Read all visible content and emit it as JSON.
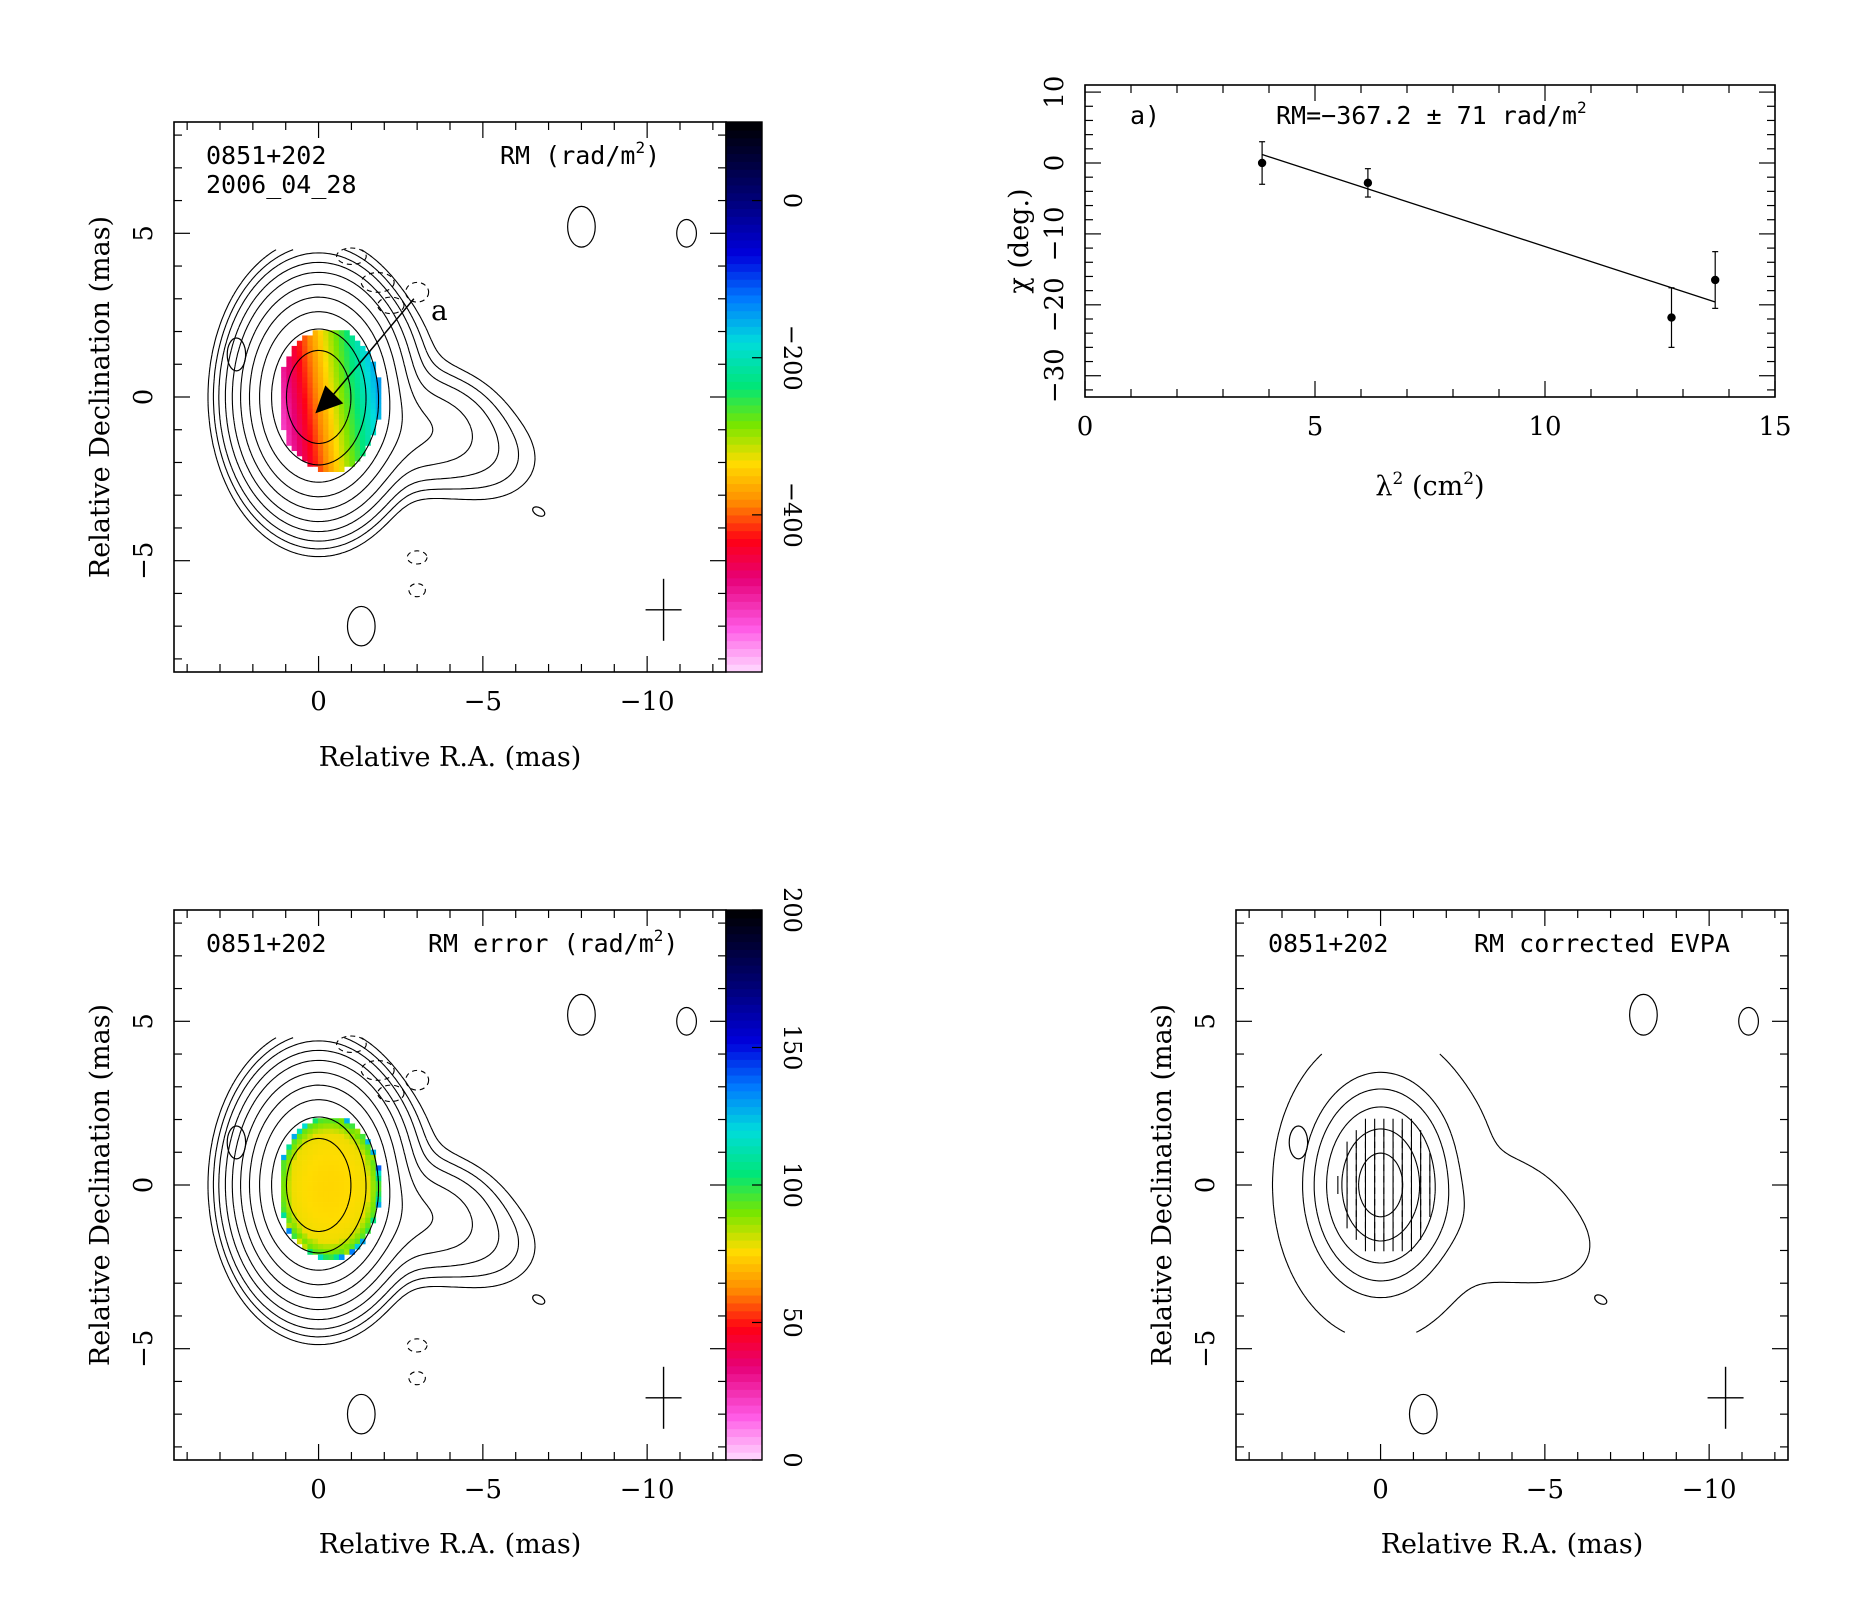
{
  "chart_data": [
    {
      "type": "heatmap",
      "source": "0851+202",
      "epoch": "2006_04_28",
      "quantity_label": "RM (rad/m",
      "quantity_unit_suffix": ")",
      "xlabel": "Relative R.A. (mas)",
      "ylabel": "Relative Declination (mas)",
      "xlim": [
        4.4,
        -12.4
      ],
      "ylim": [
        -8.4,
        8.4
      ],
      "xticks": [
        0,
        -5,
        -10
      ],
      "xtick_labels": [
        "0",
        "−5",
        "−10"
      ],
      "yticks": [
        -5,
        0,
        5
      ],
      "ytick_labels": [
        "−5",
        "0",
        "5"
      ],
      "colorbar": {
        "range": [
          -600,
          100
        ],
        "ticks": [
          0,
          -200,
          -400
        ],
        "tick_labels": [
          "0",
          "−200",
          "−400"
        ]
      },
      "annotation": "a",
      "arrow": {
        "tip": [
          0.1,
          -0.5
        ],
        "tail": [
          -2.9,
          3.0
        ]
      }
    },
    {
      "type": "scatter",
      "panel_label": "a)",
      "annotation": "RM=−367.2 ± 71 rad/m",
      "xlabel": "λ",
      "xlabel_unit": "(cm",
      "ylabel": "χ (deg.)",
      "xlim": [
        0,
        15
      ],
      "ylim": [
        -33,
        11
      ],
      "xticks": [
        0,
        5,
        10,
        15
      ],
      "xtick_labels": [
        "0",
        "5",
        "10",
        "15"
      ],
      "yticks": [
        -30,
        -20,
        -10,
        0,
        10
      ],
      "ytick_labels": [
        "−30",
        "−20",
        "−10",
        "0",
        "10"
      ],
      "points": [
        {
          "x": 3.85,
          "y": 0.0,
          "err": 3.0
        },
        {
          "x": 6.15,
          "y": -2.8,
          "err": 2.0
        },
        {
          "x": 12.75,
          "y": -21.8,
          "err": 4.2
        },
        {
          "x": 13.7,
          "y": -16.5,
          "err": 4.0
        }
      ],
      "fit": {
        "x": [
          3.85,
          13.7
        ],
        "y": [
          1.2,
          -19.6
        ]
      }
    },
    {
      "type": "heatmap",
      "source": "0851+202",
      "quantity_label": "RM error (rad/m",
      "quantity_unit_suffix": ")",
      "xlabel": "Relative R.A. (mas)",
      "ylabel": "Relative Declination (mas)",
      "xlim": [
        4.4,
        -12.4
      ],
      "ylim": [
        -8.4,
        8.4
      ],
      "xticks": [
        0,
        -5,
        -10
      ],
      "xtick_labels": [
        "0",
        "−5",
        "−10"
      ],
      "yticks": [
        -5,
        0,
        5
      ],
      "ytick_labels": [
        "−5",
        "0",
        "5"
      ],
      "colorbar": {
        "range": [
          0,
          200
        ],
        "ticks": [
          0,
          50,
          100,
          150,
          200
        ],
        "tick_labels": [
          "0",
          "50",
          "100",
          "150",
          "200"
        ]
      }
    },
    {
      "type": "contour",
      "source": "0851+202",
      "quantity_label": "RM corrected EVPA",
      "xlabel": "Relative R.A. (mas)",
      "ylabel": "Relative Declination (mas)",
      "xlim": [
        4.4,
        -12.4
      ],
      "ylim": [
        -8.4,
        8.4
      ],
      "xticks": [
        0,
        -5,
        -10
      ],
      "xtick_labels": [
        "0",
        "−5",
        "−10"
      ],
      "yticks": [
        -5,
        0,
        5
      ],
      "ytick_labels": [
        "−5",
        "0",
        "5"
      ]
    }
  ]
}
